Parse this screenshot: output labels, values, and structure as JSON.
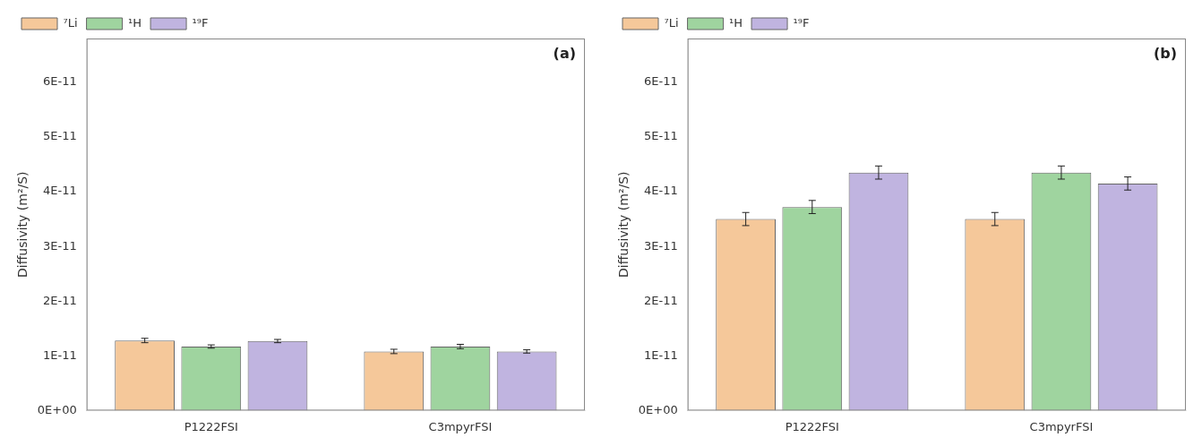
{
  "chart_data": [
    {
      "type": "bar",
      "categories": [
        "P1222FSI",
        "C3mpyrFSI"
      ],
      "series": [
        {
          "name": "⁷Li",
          "color": "#F5C89A",
          "values": [
            1.28e-11,
            1.08e-11
          ],
          "errors": [
            4e-13,
            4e-13
          ]
        },
        {
          "name": "¹H",
          "color": "#9FD49F",
          "values": [
            1.17e-11,
            1.17e-11
          ],
          "errors": [
            3e-13,
            4e-13
          ]
        },
        {
          "name": "¹⁹F",
          "color": "#C0B4E0",
          "values": [
            1.27e-11,
            1.08e-11
          ],
          "errors": [
            3e-13,
            3e-13
          ]
        }
      ],
      "y_label": "Diffusivity (m²/S)",
      "annotation": "(a)",
      "ylim": [
        0,
        6.8e-11
      ],
      "yticks": [
        {
          "value": 0,
          "label": "0E+00"
        },
        {
          "value": 1e-11,
          "label": "1E-11"
        },
        {
          "value": 2e-11,
          "label": "2E-11"
        },
        {
          "value": 3e-11,
          "label": "3E-11"
        },
        {
          "value": 4e-11,
          "label": "4E-11"
        },
        {
          "value": 5e-11,
          "label": "5E-11"
        },
        {
          "value": 6e-11,
          "label": "6E-11"
        }
      ],
      "legend": "upper left",
      "grid": false
    },
    {
      "type": "bar",
      "categories": [
        "P1222FSI",
        "C3mpyrFSI"
      ],
      "series": [
        {
          "name": "⁷Li",
          "color": "#F5C89A",
          "values": [
            3.5e-11,
            3.5e-11
          ],
          "errors": [
            1.2e-12,
            1.2e-12
          ]
        },
        {
          "name": "¹H",
          "color": "#9FD49F",
          "values": [
            3.72e-11,
            4.35e-11
          ],
          "errors": [
            1.2e-12,
            1.2e-12
          ]
        },
        {
          "name": "¹⁹F",
          "color": "#C0B4E0",
          "values": [
            4.35e-11,
            4.15e-11
          ],
          "errors": [
            1.2e-12,
            1.2e-12
          ]
        }
      ],
      "y_label": "Diffusivity (m²/S)",
      "annotation": "(b)",
      "ylim": [
        0,
        6.8e-11
      ],
      "yticks": [
        {
          "value": 0,
          "label": "0E+00"
        },
        {
          "value": 1e-11,
          "label": "1E-11"
        },
        {
          "value": 2e-11,
          "label": "2E-11"
        },
        {
          "value": 3e-11,
          "label": "3E-11"
        },
        {
          "value": 4e-11,
          "label": "4E-11"
        },
        {
          "value": 5e-11,
          "label": "5E-11"
        },
        {
          "value": 6e-11,
          "label": "6E-11"
        }
      ],
      "legend": "upper left",
      "grid": false
    }
  ]
}
